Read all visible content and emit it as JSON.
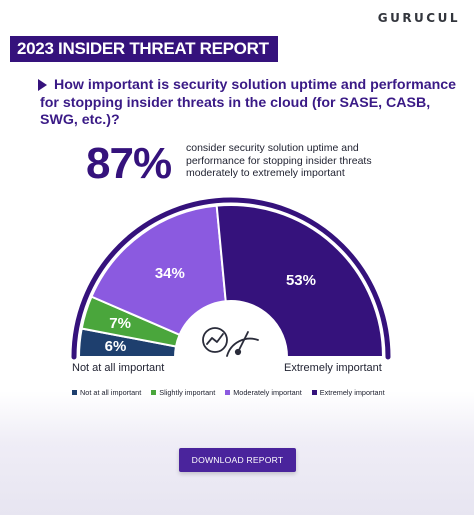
{
  "header": {
    "logo_text": "GURUCUL",
    "banner_title": "2023 INSIDER THREAT REPORT"
  },
  "question": "How important is security solution uptime and performance for stopping insider threats in the cloud (for SASE, CASB, SWG, etc.)?",
  "highlight": {
    "value": "87%",
    "description": "consider security solution uptime and performance for stopping insider threats moderately to extremely important"
  },
  "chart_data": {
    "type": "pie",
    "subtype": "semicircle-gauge",
    "title": "",
    "categories": [
      "Not at all important",
      "Slightly important",
      "Moderately important",
      "Extremely important"
    ],
    "values": [
      6,
      7,
      34,
      53
    ],
    "labels": [
      "6%",
      "7%",
      "34%",
      "53%"
    ],
    "colors": [
      "#1e3f6e",
      "#4aa63c",
      "#8b5ae0",
      "#35127c"
    ],
    "axis_left_label": "Not at all important",
    "axis_right_label": "Extremely important",
    "legend_placement": "bottom",
    "center_icon": "analytics-gauge-icon"
  },
  "cta": {
    "label": "DOWNLOAD REPORT"
  }
}
